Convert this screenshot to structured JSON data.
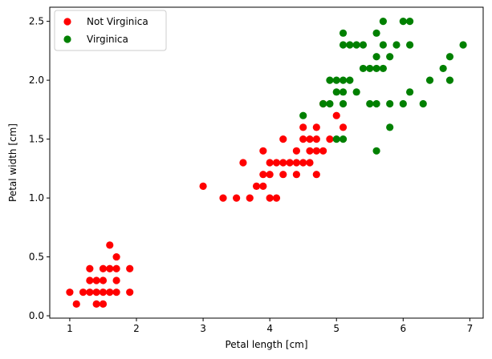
{
  "chart_data": {
    "type": "scatter",
    "xlabel": "Petal length [cm]",
    "ylabel": "Petal width [cm]",
    "xlim": [
      0.7,
      7.2
    ],
    "ylim": [
      -0.02,
      2.62
    ],
    "xticks": [
      1,
      2,
      3,
      4,
      5,
      6,
      7
    ],
    "xtick_labels": [
      "1",
      "2",
      "3",
      "4",
      "5",
      "6",
      "7"
    ],
    "yticks": [
      0.0,
      0.5,
      1.0,
      1.5,
      2.0,
      2.5
    ],
    "ytick_labels": [
      "0.0",
      "0.5",
      "1.0",
      "1.5",
      "2.0",
      "2.5"
    ],
    "grid": false,
    "legend_position": "top-left",
    "series": [
      {
        "name": "Not Virginica",
        "color": "#ff0000",
        "points": [
          [
            1.0,
            0.2
          ],
          [
            1.1,
            0.1
          ],
          [
            1.2,
            0.2
          ],
          [
            1.3,
            0.2
          ],
          [
            1.3,
            0.3
          ],
          [
            1.3,
            0.4
          ],
          [
            1.4,
            0.1
          ],
          [
            1.4,
            0.2
          ],
          [
            1.4,
            0.3
          ],
          [
            1.5,
            0.1
          ],
          [
            1.5,
            0.2
          ],
          [
            1.5,
            0.3
          ],
          [
            1.5,
            0.4
          ],
          [
            1.6,
            0.2
          ],
          [
            1.6,
            0.4
          ],
          [
            1.6,
            0.6
          ],
          [
            1.7,
            0.2
          ],
          [
            1.7,
            0.3
          ],
          [
            1.7,
            0.4
          ],
          [
            1.7,
            0.5
          ],
          [
            1.9,
            0.2
          ],
          [
            1.9,
            0.4
          ],
          [
            3.0,
            1.1
          ],
          [
            3.3,
            1.0
          ],
          [
            3.5,
            1.0
          ],
          [
            3.6,
            1.3
          ],
          [
            3.7,
            1.0
          ],
          [
            3.8,
            1.1
          ],
          [
            3.9,
            1.1
          ],
          [
            3.9,
            1.2
          ],
          [
            3.9,
            1.4
          ],
          [
            4.0,
            1.0
          ],
          [
            4.0,
            1.2
          ],
          [
            4.0,
            1.3
          ],
          [
            4.1,
            1.0
          ],
          [
            4.1,
            1.3
          ],
          [
            4.2,
            1.2
          ],
          [
            4.2,
            1.3
          ],
          [
            4.2,
            1.5
          ],
          [
            4.3,
            1.3
          ],
          [
            4.4,
            1.2
          ],
          [
            4.4,
            1.3
          ],
          [
            4.4,
            1.4
          ],
          [
            4.5,
            1.3
          ],
          [
            4.5,
            1.5
          ],
          [
            4.5,
            1.6
          ],
          [
            4.6,
            1.3
          ],
          [
            4.6,
            1.4
          ],
          [
            4.6,
            1.5
          ],
          [
            4.7,
            1.2
          ],
          [
            4.7,
            1.4
          ],
          [
            4.7,
            1.5
          ],
          [
            4.7,
            1.6
          ],
          [
            4.8,
            1.4
          ],
          [
            4.8,
            1.8
          ],
          [
            4.9,
            1.5
          ],
          [
            5.0,
            1.7
          ],
          [
            5.1,
            1.6
          ]
        ]
      },
      {
        "name": "Virginica",
        "color": "#008000",
        "points": [
          [
            4.5,
            1.7
          ],
          [
            4.8,
            1.8
          ],
          [
            4.9,
            1.8
          ],
          [
            4.9,
            2.0
          ],
          [
            5.0,
            1.5
          ],
          [
            5.0,
            1.9
          ],
          [
            5.0,
            2.0
          ],
          [
            5.1,
            1.5
          ],
          [
            5.1,
            1.8
          ],
          [
            5.1,
            1.9
          ],
          [
            5.1,
            2.0
          ],
          [
            5.1,
            2.3
          ],
          [
            5.1,
            2.4
          ],
          [
            5.2,
            2.0
          ],
          [
            5.2,
            2.3
          ],
          [
            5.3,
            1.9
          ],
          [
            5.3,
            2.3
          ],
          [
            5.4,
            2.1
          ],
          [
            5.4,
            2.3
          ],
          [
            5.5,
            1.8
          ],
          [
            5.5,
            2.1
          ],
          [
            5.6,
            1.4
          ],
          [
            5.6,
            1.8
          ],
          [
            5.6,
            2.1
          ],
          [
            5.6,
            2.2
          ],
          [
            5.6,
            2.4
          ],
          [
            5.7,
            2.1
          ],
          [
            5.7,
            2.3
          ],
          [
            5.7,
            2.5
          ],
          [
            5.8,
            1.6
          ],
          [
            5.8,
            1.8
          ],
          [
            5.8,
            2.2
          ],
          [
            5.9,
            2.3
          ],
          [
            6.0,
            1.8
          ],
          [
            6.0,
            2.5
          ],
          [
            6.1,
            1.9
          ],
          [
            6.1,
            2.3
          ],
          [
            6.1,
            2.5
          ],
          [
            6.3,
            1.8
          ],
          [
            6.4,
            2.0
          ],
          [
            6.6,
            2.1
          ],
          [
            6.7,
            2.0
          ],
          [
            6.7,
            2.2
          ],
          [
            6.9,
            2.3
          ]
        ]
      }
    ]
  }
}
